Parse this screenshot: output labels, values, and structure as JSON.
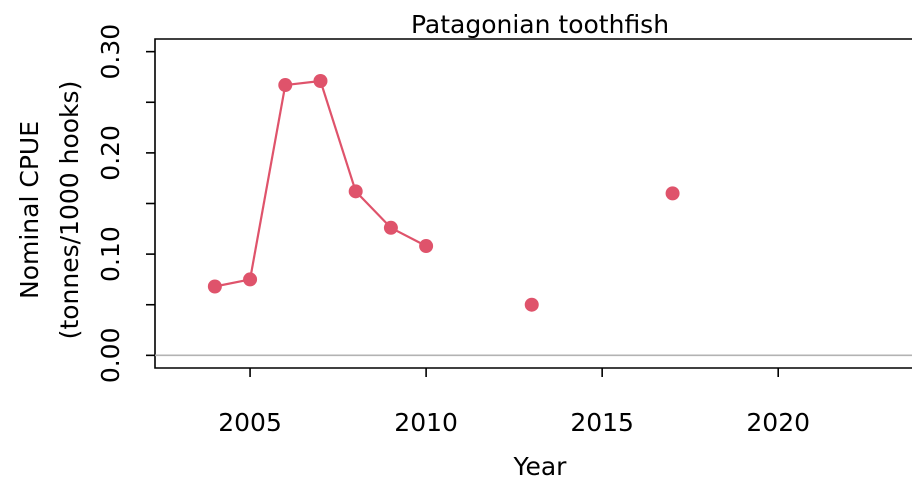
{
  "chart_data": {
    "type": "line",
    "title": "Patagonian toothfish",
    "xlabel": "Year",
    "ylabel": [
      "Nominal CPUE",
      "(tonnes/1000 hooks)"
    ],
    "xlim": [
      2002.3,
      2023.8
    ],
    "ylim": [
      -0.0125,
      0.3125
    ],
    "x_ticks": [
      2005,
      2010,
      2015,
      2020
    ],
    "x_tick_labels": [
      "2005",
      "2010",
      "2015",
      "2020"
    ],
    "y_ticks": [
      0.0,
      0.05,
      0.1,
      0.15,
      0.2,
      0.25,
      0.3
    ],
    "y_tick_labels": [
      "0.00",
      "0.10",
      "0.20",
      "0.30"
    ],
    "y_labeled_ticks": [
      0.0,
      0.1,
      0.2,
      0.3
    ],
    "grid": false,
    "reference_line": 0,
    "series": [
      {
        "color": "#DF536B",
        "points": [
          {
            "x": 2004,
            "y": 0.068
          },
          {
            "x": 2005,
            "y": 0.075
          },
          {
            "x": 2006,
            "y": 0.267
          },
          {
            "x": 2007,
            "y": 0.271
          },
          {
            "x": 2008,
            "y": 0.162
          },
          {
            "x": 2009,
            "y": 0.126
          },
          {
            "x": 2010,
            "y": 0.108
          },
          {
            "x": 2013,
            "y": 0.05
          },
          {
            "x": 2017,
            "y": 0.16
          }
        ]
      }
    ]
  }
}
